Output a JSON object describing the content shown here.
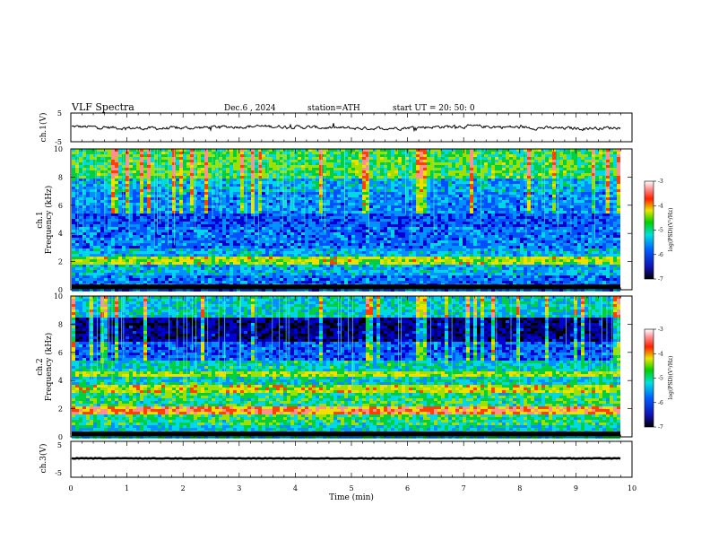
{
  "header": {
    "title": "VLF  Spectra",
    "date": "Dec.6  , 2024",
    "station": "station=ATH",
    "start": "start  UT  =   20: 50: 0"
  },
  "chart_data": [
    {
      "type": "line",
      "name": "ch1-waveform",
      "ylabel": "ch.1(V)",
      "ylim": [
        -5,
        5
      ],
      "yticks": [
        "5",
        "-5"
      ],
      "xlim": [
        0,
        10
      ]
    },
    {
      "type": "heatmap",
      "name": "ch1-spectrogram",
      "ylabel_line1": "ch.1",
      "ylabel_line2": "Frequency  (kHz)",
      "ylim": [
        0,
        10
      ],
      "yticks": [
        "0",
        "2",
        "4",
        "6",
        "8",
        "10"
      ],
      "xlim": [
        0,
        10
      ],
      "colorbar": {
        "ticks": [
          "-3",
          "-4",
          "-5",
          "-6",
          "-7"
        ],
        "label": "log(PSD)(V²/Hz)",
        "range": [
          -7,
          -3
        ]
      }
    },
    {
      "type": "heatmap",
      "name": "ch2-spectrogram",
      "ylabel_line1": "ch.2",
      "ylabel_line2": "Frequency  (kHz)",
      "ylim": [
        0,
        10
      ],
      "yticks": [
        "0",
        "2",
        "4",
        "6",
        "8",
        "10"
      ],
      "xlim": [
        0,
        10
      ],
      "colorbar": {
        "ticks": [
          "-3",
          "-4",
          "-5",
          "-6",
          "-7"
        ],
        "label": "log(PSD)(V²/Hz)",
        "range": [
          -7,
          -3
        ]
      }
    },
    {
      "type": "line",
      "name": "ch3-waveform",
      "ylabel": "ch.3(V)",
      "ylim": [
        -5,
        5
      ],
      "yticks": [
        "5",
        "-5"
      ],
      "xlim": [
        0,
        10
      ],
      "xlabel": "Time  (min)",
      "xticks": [
        "0",
        "1",
        "2",
        "3",
        "4",
        "5",
        "6",
        "7",
        "8",
        "9",
        "10"
      ]
    }
  ]
}
